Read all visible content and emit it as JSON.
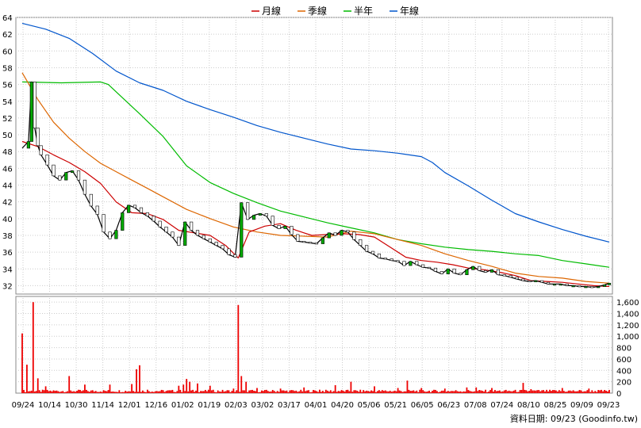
{
  "chart_data": {
    "type": "line",
    "legend": [
      {
        "name": "月線",
        "color": "#cc0000"
      },
      {
        "name": "季線",
        "color": "#dd6600"
      },
      {
        "name": "半年",
        "color": "#00bb00"
      },
      {
        "name": "年線",
        "color": "#0055cc"
      }
    ],
    "price_axis": {
      "ticks": [
        "64",
        "62",
        "60",
        "58",
        "56",
        "54",
        "52",
        "50",
        "48",
        "46",
        "44",
        "42",
        "40",
        "38",
        "36",
        "34",
        "32"
      ],
      "min": 31,
      "max": 64
    },
    "volume_axis": {
      "ticks": [
        "1,600",
        "1,400",
        "1,200",
        "1,000",
        "800",
        "600",
        "400",
        "200",
        "0"
      ],
      "min": 0,
      "max": 1700
    },
    "x_ticks": [
      "09/24",
      "10/14",
      "10/30",
      "11/14",
      "12/01",
      "12/16",
      "01/02",
      "01/19",
      "02/03",
      "03/02",
      "03/17",
      "04/01",
      "04/20",
      "05/06",
      "05/21",
      "06/05",
      "06/23",
      "07/08",
      "07/24",
      "08/10",
      "08/25",
      "09/09",
      "09/23"
    ],
    "footer": "資料日期: 09/23  (Goodinfo.tw)",
    "series": [
      {
        "name": "年線",
        "color": "#0055cc",
        "values": [
          [
            0,
            63.3
          ],
          [
            15,
            62.6
          ],
          [
            30,
            61.5
          ],
          [
            45,
            59.7
          ],
          [
            60,
            57.6
          ],
          [
            75,
            56.2
          ],
          [
            90,
            55.3
          ],
          [
            105,
            54.0
          ],
          [
            120,
            53.0
          ],
          [
            135,
            52.1
          ],
          [
            150,
            51.1
          ],
          [
            165,
            50.3
          ],
          [
            180,
            49.6
          ],
          [
            195,
            48.9
          ],
          [
            210,
            48.3
          ],
          [
            225,
            48.1
          ],
          [
            240,
            47.8
          ],
          [
            255,
            47.4
          ],
          [
            262,
            46.7
          ],
          [
            270,
            45.5
          ],
          [
            285,
            43.9
          ],
          [
            300,
            42.2
          ],
          [
            315,
            40.6
          ],
          [
            330,
            39.6
          ],
          [
            345,
            38.7
          ],
          [
            360,
            37.9
          ],
          [
            375,
            37.2
          ]
        ]
      },
      {
        "name": "半年",
        "color": "#00bb00",
        "values": [
          [
            0,
            56.3
          ],
          [
            25,
            56.2
          ],
          [
            50,
            56.3
          ],
          [
            55,
            56.0
          ],
          [
            75,
            52.5
          ],
          [
            90,
            49.8
          ],
          [
            105,
            46.3
          ],
          [
            120,
            44.3
          ],
          [
            135,
            43.0
          ],
          [
            150,
            41.9
          ],
          [
            165,
            40.9
          ],
          [
            180,
            40.2
          ],
          [
            195,
            39.5
          ],
          [
            210,
            38.9
          ],
          [
            225,
            38.3
          ],
          [
            240,
            37.5
          ],
          [
            255,
            37.0
          ],
          [
            270,
            36.6
          ],
          [
            285,
            36.3
          ],
          [
            300,
            36.1
          ],
          [
            315,
            35.8
          ],
          [
            330,
            35.6
          ],
          [
            345,
            35.0
          ],
          [
            360,
            34.6
          ],
          [
            375,
            34.2
          ]
        ]
      },
      {
        "name": "季線",
        "color": "#dd6600",
        "values": [
          [
            0,
            57.4
          ],
          [
            10,
            54.2
          ],
          [
            20,
            51.5
          ],
          [
            30,
            49.6
          ],
          [
            40,
            48.0
          ],
          [
            50,
            46.6
          ],
          [
            60,
            45.6
          ],
          [
            70,
            44.6
          ],
          [
            80,
            43.6
          ],
          [
            90,
            42.6
          ],
          [
            105,
            41.1
          ],
          [
            120,
            40.0
          ],
          [
            135,
            39.0
          ],
          [
            150,
            38.4
          ],
          [
            165,
            38.0
          ],
          [
            180,
            37.9
          ],
          [
            195,
            37.8
          ],
          [
            210,
            38.5
          ],
          [
            225,
            38.2
          ],
          [
            240,
            37.5
          ],
          [
            255,
            36.8
          ],
          [
            270,
            35.8
          ],
          [
            285,
            35.0
          ],
          [
            300,
            34.3
          ],
          [
            315,
            33.5
          ],
          [
            330,
            33.1
          ],
          [
            345,
            32.9
          ],
          [
            360,
            32.5
          ],
          [
            375,
            32.3
          ]
        ]
      },
      {
        "name": "月線",
        "color": "#cc0000",
        "values": [
          [
            0,
            49.2
          ],
          [
            10,
            48.6
          ],
          [
            20,
            47.6
          ],
          [
            30,
            46.7
          ],
          [
            40,
            45.6
          ],
          [
            50,
            44.2
          ],
          [
            60,
            42.0
          ],
          [
            70,
            40.7
          ],
          [
            80,
            40.6
          ],
          [
            90,
            39.9
          ],
          [
            100,
            38.6
          ],
          [
            110,
            38.3
          ],
          [
            120,
            38.0
          ],
          [
            130,
            36.8
          ],
          [
            138,
            35.3
          ],
          [
            145,
            38.4
          ],
          [
            155,
            39.1
          ],
          [
            165,
            39.4
          ],
          [
            175,
            38.6
          ],
          [
            185,
            38.0
          ],
          [
            195,
            38.1
          ],
          [
            205,
            38.2
          ],
          [
            215,
            38.1
          ],
          [
            225,
            37.8
          ],
          [
            235,
            36.6
          ],
          [
            245,
            35.4
          ],
          [
            255,
            35.0
          ],
          [
            265,
            34.8
          ],
          [
            275,
            34.5
          ],
          [
            285,
            34.1
          ],
          [
            295,
            33.9
          ],
          [
            305,
            33.6
          ],
          [
            315,
            33.2
          ],
          [
            325,
            32.6
          ],
          [
            335,
            32.5
          ],
          [
            345,
            32.4
          ],
          [
            355,
            32.2
          ],
          [
            365,
            32.0
          ],
          [
            375,
            31.9
          ]
        ]
      },
      {
        "name": "close",
        "color": "#000000",
        "values": [
          [
            0,
            48.4
          ],
          [
            4,
            49.2
          ],
          [
            6,
            56.3
          ],
          [
            8,
            50.8
          ],
          [
            10,
            48.7
          ],
          [
            12,
            47.6
          ],
          [
            16,
            46.4
          ],
          [
            20,
            45.1
          ],
          [
            24,
            44.6
          ],
          [
            28,
            45.5
          ],
          [
            32,
            45.7
          ],
          [
            36,
            44.6
          ],
          [
            40,
            42.9
          ],
          [
            44,
            41.5
          ],
          [
            48,
            40.5
          ],
          [
            52,
            38.4
          ],
          [
            56,
            37.6
          ],
          [
            60,
            38.6
          ],
          [
            64,
            40.7
          ],
          [
            68,
            41.6
          ],
          [
            72,
            41.3
          ],
          [
            76,
            40.7
          ],
          [
            80,
            40.3
          ],
          [
            84,
            39.7
          ],
          [
            88,
            39.0
          ],
          [
            92,
            38.4
          ],
          [
            96,
            37.8
          ],
          [
            100,
            36.8
          ],
          [
            104,
            39.6
          ],
          [
            108,
            38.6
          ],
          [
            112,
            38.0
          ],
          [
            116,
            37.6
          ],
          [
            120,
            37.2
          ],
          [
            124,
            36.8
          ],
          [
            128,
            36.4
          ],
          [
            132,
            35.7
          ],
          [
            136,
            35.4
          ],
          [
            140,
            41.9
          ],
          [
            144,
            39.9
          ],
          [
            148,
            40.4
          ],
          [
            152,
            40.6
          ],
          [
            156,
            40.3
          ],
          [
            160,
            39.2
          ],
          [
            164,
            38.8
          ],
          [
            168,
            39.1
          ],
          [
            172,
            38.1
          ],
          [
            176,
            37.3
          ],
          [
            180,
            37.2
          ],
          [
            184,
            37.1
          ],
          [
            188,
            37.0
          ],
          [
            192,
            37.7
          ],
          [
            196,
            38.3
          ],
          [
            200,
            38.0
          ],
          [
            204,
            38.6
          ],
          [
            208,
            38.4
          ],
          [
            212,
            37.5
          ],
          [
            216,
            36.8
          ],
          [
            220,
            36.1
          ],
          [
            224,
            35.8
          ],
          [
            228,
            35.3
          ],
          [
            232,
            35.2
          ],
          [
            236,
            35.0
          ],
          [
            240,
            34.9
          ],
          [
            244,
            34.4
          ],
          [
            248,
            34.9
          ],
          [
            252,
            34.5
          ],
          [
            256,
            34.2
          ],
          [
            260,
            34.1
          ],
          [
            264,
            33.7
          ],
          [
            268,
            33.4
          ],
          [
            272,
            34.0
          ],
          [
            276,
            33.5
          ],
          [
            280,
            33.3
          ],
          [
            284,
            33.9
          ],
          [
            288,
            34.3
          ],
          [
            292,
            33.8
          ],
          [
            296,
            33.6
          ],
          [
            300,
            33.9
          ],
          [
            304,
            33.3
          ],
          [
            308,
            33.2
          ],
          [
            312,
            33.0
          ],
          [
            316,
            32.8
          ],
          [
            320,
            32.6
          ],
          [
            324,
            32.5
          ],
          [
            328,
            32.6
          ],
          [
            332,
            32.4
          ],
          [
            336,
            32.2
          ],
          [
            340,
            32.2
          ],
          [
            344,
            32.2
          ],
          [
            348,
            32.0
          ],
          [
            352,
            32.0
          ],
          [
            356,
            31.9
          ],
          [
            360,
            31.9
          ],
          [
            364,
            31.8
          ],
          [
            368,
            31.9
          ],
          [
            372,
            32.1
          ],
          [
            375,
            32.3
          ]
        ]
      }
    ],
    "volume": {
      "color": "#ee0000",
      "spikes": [
        [
          0,
          1050
        ],
        [
          3,
          500
        ],
        [
          7,
          1600
        ],
        [
          10,
          260
        ],
        [
          15,
          120
        ],
        [
          30,
          300
        ],
        [
          40,
          150
        ],
        [
          56,
          150
        ],
        [
          70,
          160
        ],
        [
          73,
          420
        ],
        [
          75,
          490
        ],
        [
          80,
          60
        ],
        [
          100,
          130
        ],
        [
          103,
          150
        ],
        [
          105,
          250
        ],
        [
          107,
          200
        ],
        [
          112,
          170
        ],
        [
          120,
          130
        ],
        [
          135,
          80
        ],
        [
          138,
          1550
        ],
        [
          140,
          300
        ],
        [
          143,
          200
        ],
        [
          150,
          90
        ],
        [
          165,
          80
        ],
        [
          180,
          100
        ],
        [
          190,
          60
        ],
        [
          200,
          140
        ],
        [
          210,
          200
        ],
        [
          225,
          120
        ],
        [
          240,
          90
        ],
        [
          246,
          220
        ],
        [
          255,
          90
        ],
        [
          270,
          80
        ],
        [
          284,
          100
        ],
        [
          290,
          100
        ],
        [
          300,
          90
        ],
        [
          320,
          180
        ],
        [
          325,
          70
        ],
        [
          345,
          90
        ],
        [
          362,
          80
        ]
      ]
    }
  }
}
